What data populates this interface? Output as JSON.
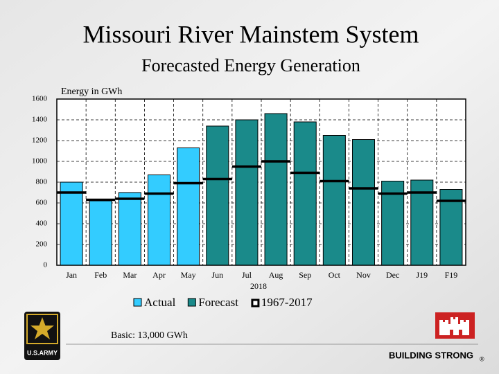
{
  "chart_data": {
    "type": "bar",
    "title": "Missouri River Mainstem System",
    "subtitle": "Forecasted Energy Generation",
    "y_label": "Energy in GWh",
    "x_label": "2018",
    "categories": [
      "Jan",
      "Feb",
      "Mar",
      "Apr",
      "May",
      "Jun",
      "Jul",
      "Aug",
      "Sep",
      "Oct",
      "Nov",
      "Dec",
      "J19",
      "F19"
    ],
    "series": [
      {
        "name": "Actual",
        "color": "#33ccff",
        "kind": "bar",
        "values": [
          800,
          620,
          700,
          870,
          1130,
          null,
          null,
          null,
          null,
          null,
          null,
          null,
          null,
          null
        ]
      },
      {
        "name": "Forecast",
        "color": "#1a8a8a",
        "kind": "bar",
        "values": [
          null,
          null,
          null,
          null,
          null,
          1340,
          1400,
          1460,
          1380,
          1250,
          1210,
          810,
          820,
          730
        ]
      },
      {
        "name": "1967-2017",
        "color": "#000000",
        "kind": "level",
        "values": [
          700,
          630,
          640,
          690,
          790,
          830,
          950,
          1000,
          890,
          810,
          740,
          690,
          700,
          620
        ]
      }
    ],
    "ylim": [
      0,
      1600
    ],
    "yticks": [
      0,
      200,
      400,
      600,
      800,
      1000,
      1200,
      1400,
      1600
    ],
    "grid": true,
    "note": "Basic: 13,000 GWh"
  },
  "footer": {
    "slogan": "BUILDING STRONG",
    "trademark": "®",
    "army_logo": "U.S.ARMY"
  }
}
